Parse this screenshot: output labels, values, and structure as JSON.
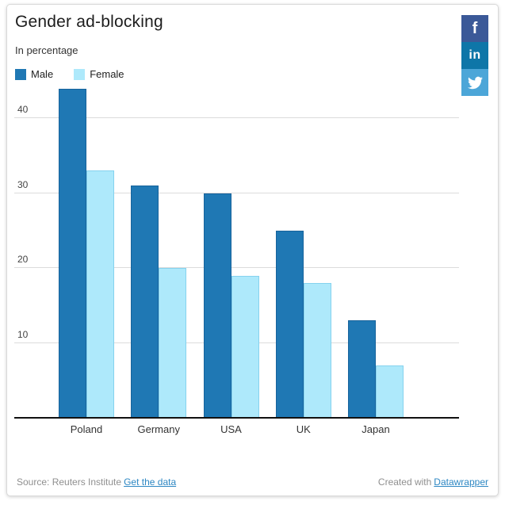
{
  "share_buttons": [
    {
      "name": "facebook",
      "glyph": "f"
    },
    {
      "name": "linkedin",
      "glyph": "in"
    },
    {
      "name": "twitter",
      "glyph": "twitter-bird"
    }
  ],
  "footer": {
    "source_prefix": "Source: Reuters Institute",
    "source_link": "Get the data",
    "credit_prefix": "Created with",
    "credit_link": "Datawrapper"
  },
  "colors": {
    "male": "#1f78b4",
    "male_border": "#17639c",
    "female": "#aee9fb",
    "female_border": "#85d2ee",
    "facebook": "#3b5998",
    "linkedin": "#0e76a8",
    "twitter": "#4ca6d8",
    "grid": "#dcdcdc",
    "axis": "#111111"
  },
  "chart_data": {
    "type": "bar",
    "title": "Gender ad-blocking",
    "subtitle": "In percentage",
    "categories": [
      "Poland",
      "Germany",
      "USA",
      "UK",
      "Japan"
    ],
    "series": [
      {
        "name": "Male",
        "values": [
          44,
          31,
          30,
          25,
          13
        ]
      },
      {
        "name": "Female",
        "values": [
          33,
          20,
          19,
          18,
          7
        ]
      }
    ],
    "ylabel": "",
    "xlabel": "",
    "ylim": [
      0,
      46
    ],
    "yticks": [
      10,
      20,
      30,
      40
    ],
    "grid": true,
    "legend_position": "top-left"
  }
}
